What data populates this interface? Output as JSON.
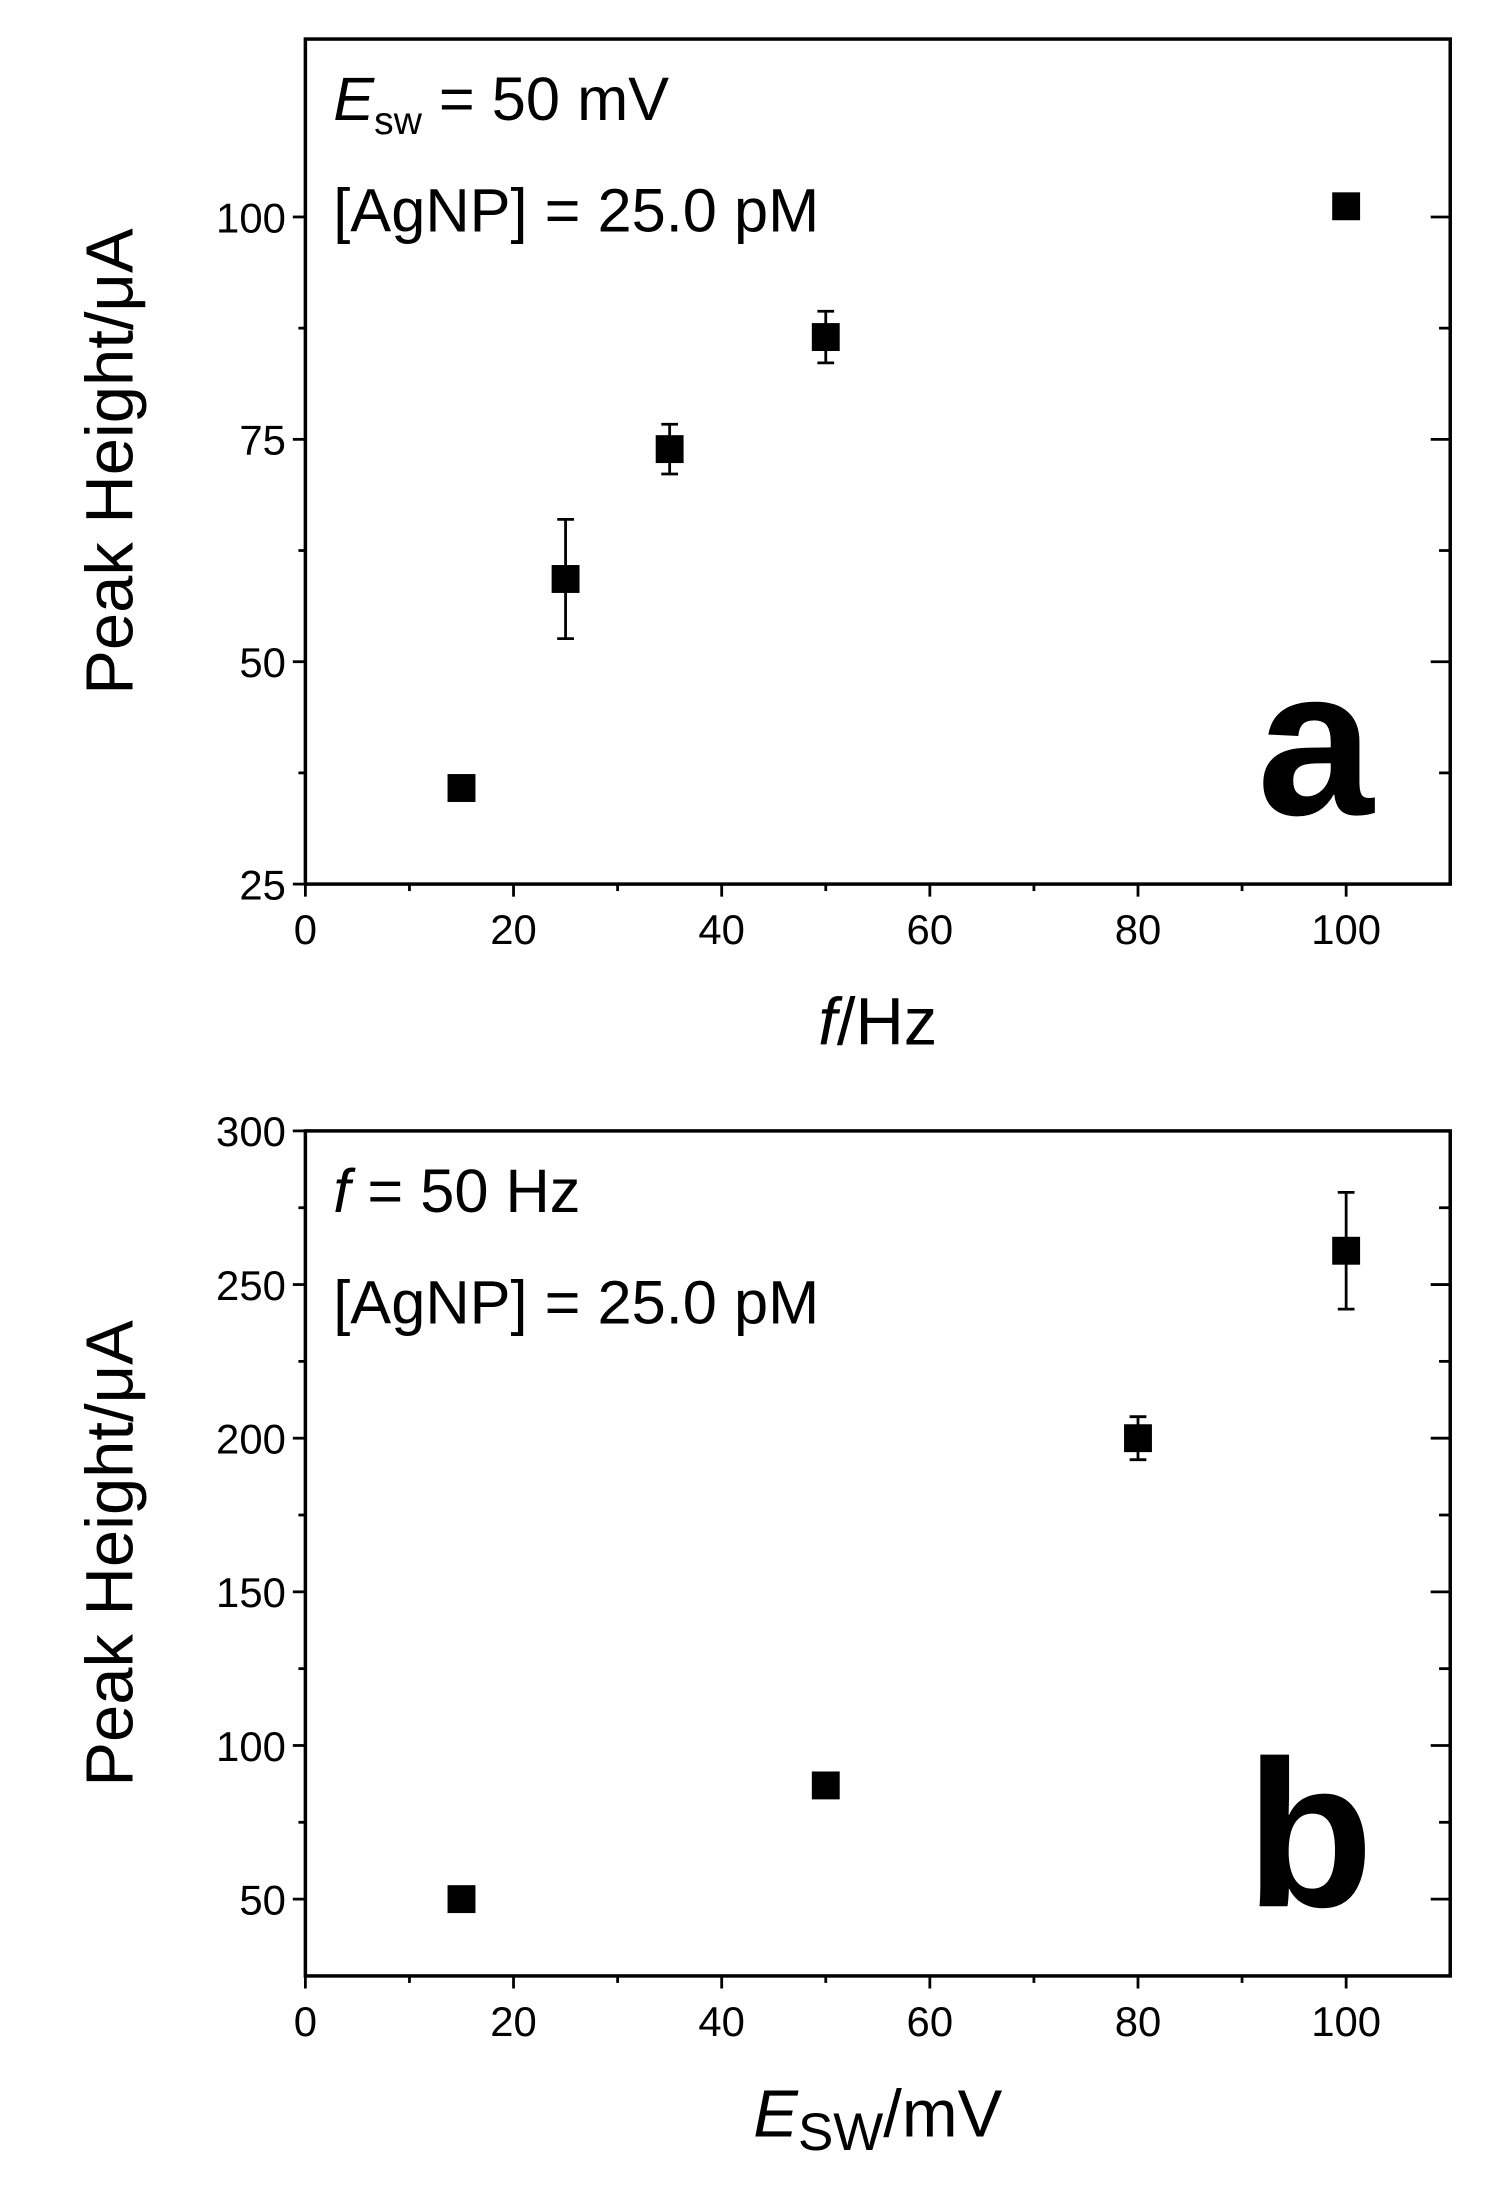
{
  "chart_data": [
    {
      "type": "scatter",
      "annotation_1": {
        "symbol": "E",
        "subscript": "sw",
        "text": " = 50 mV"
      },
      "annotation_2": "[AgNP] = 25.0 pM",
      "panel_label": "a",
      "xlabel": {
        "symbol": "f",
        "text": "/Hz"
      },
      "ylabel": "Peak Height/μA",
      "x": [
        15,
        25,
        35,
        50,
        100
      ],
      "values": [
        35.8,
        59.3,
        73.9,
        86.5,
        101.2
      ],
      "errors": [
        0.8,
        6.7,
        2.8,
        2.9,
        0.8
      ],
      "color": "#000000",
      "xlim": [
        0,
        110
      ],
      "xticks": [
        0,
        20,
        40,
        60,
        80,
        100
      ],
      "ylim": [
        25,
        120
      ],
      "yticks": [
        25,
        50,
        75,
        100
      ]
    },
    {
      "type": "scatter",
      "annotation_1": {
        "symbol": "f",
        "text": " = 50 Hz"
      },
      "annotation_2": "[AgNP] = 25.0 pM",
      "panel_label": "b",
      "xlabel": {
        "symbol": "E",
        "subscript": "SW",
        "text": "/mV"
      },
      "ylabel": "Peak Height/μA",
      "x": [
        15,
        50,
        80,
        100
      ],
      "values": [
        50,
        87,
        200,
        261
      ],
      "errors": [
        2,
        1.5,
        7,
        19
      ],
      "color": "#000000",
      "xlim": [
        0,
        110
      ],
      "xticks": [
        0,
        20,
        40,
        60,
        80,
        100
      ],
      "ylim": [
        25,
        300
      ],
      "yticks": [
        50,
        100,
        150,
        200,
        250,
        300
      ]
    }
  ]
}
